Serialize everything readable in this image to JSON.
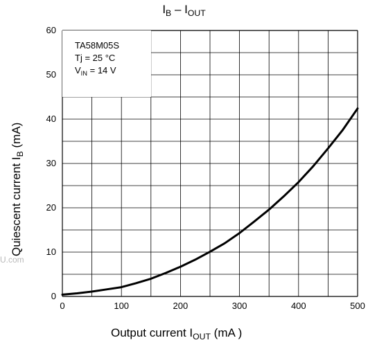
{
  "chart_data": {
    "type": "line",
    "title": {
      "main": "I",
      "main_sub": "B",
      "sep": " – I",
      "sep_sub": "OUT"
    },
    "xlabel": {
      "text": "Output current   I",
      "sub": "OUT",
      "unit": "    (mA )"
    },
    "ylabel": {
      "text": "Quiescent current    I",
      "sub": "B",
      "unit": "    (mA)"
    },
    "xlim": [
      0,
      500
    ],
    "ylim": [
      0,
      60
    ],
    "xticks": [
      0,
      100,
      200,
      300,
      400,
      500
    ],
    "yticks": [
      0,
      10,
      20,
      30,
      40,
      50,
      60
    ],
    "grid": true,
    "legend_box": {
      "line1": "TA58M05S",
      "line2": "Tj = 25 °C",
      "line3_main": "V",
      "line3_sub": "IN",
      "line3_rest": " = 14 V"
    },
    "series": [
      {
        "x": [
          0,
          25,
          50,
          75,
          100,
          125,
          150,
          175,
          200,
          225,
          250,
          275,
          300,
          325,
          350,
          375,
          400,
          425,
          450,
          475,
          500
        ],
        "values": [
          0.4,
          0.7,
          1.1,
          1.6,
          2.1,
          3.0,
          4.0,
          5.3,
          6.7,
          8.3,
          10.1,
          12.0,
          14.3,
          16.9,
          19.6,
          22.6,
          25.8,
          29.4,
          33.4,
          37.6,
          42.4
        ]
      }
    ]
  },
  "watermark": "U.com",
  "style": {
    "line_color": "#000000",
    "grid_color": "#000000",
    "bg": "#ffffff"
  }
}
